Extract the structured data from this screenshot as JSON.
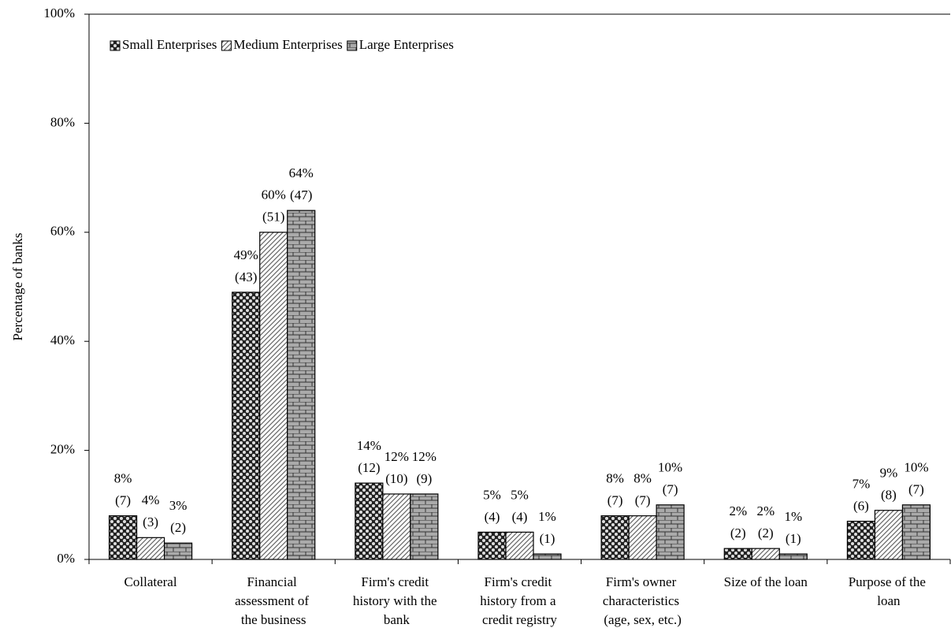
{
  "chart_data": {
    "type": "bar",
    "ylabel": "Percentage of banks",
    "categories": [
      "Collateral",
      "Financial assessment of the business",
      "Firm's credit history with the bank",
      "Firm's credit history from a credit registry",
      "Firm's owner characteristics (age, sex, etc.)",
      "Size of the loan",
      "Purpose of the loan"
    ],
    "series": [
      {
        "name": "Small Enterprises",
        "color": "#333333",
        "values": [
          8,
          49,
          14,
          5,
          8,
          2,
          7
        ],
        "value_labels": [
          "8%",
          "49%",
          "14%",
          "5%",
          "8%",
          "2%",
          "7%"
        ],
        "count_labels": [
          "(7)",
          "(43)",
          "(12)",
          "(4)",
          "(7)",
          "(2)",
          "(6)"
        ]
      },
      {
        "name": "Medium Enterprises",
        "color": "#dddddd",
        "values": [
          4,
          60,
          12,
          5,
          8,
          2,
          9
        ],
        "value_labels": [
          "4%",
          "60%",
          "12%",
          "5%",
          "8%",
          "2%",
          "9%"
        ],
        "count_labels": [
          "(3)",
          "(51)",
          "(10)",
          "(4)",
          "(7)",
          "(2)",
          "(8)"
        ]
      },
      {
        "name": "Large Enterprises",
        "color": "#999999",
        "values": [
          3,
          64,
          12,
          1,
          10,
          1,
          10
        ],
        "value_labels": [
          "3%",
          "64%",
          "12%",
          "1%",
          "10%",
          "1%",
          "10%"
        ],
        "count_labels": [
          "(2)",
          "(47)",
          "(9)",
          "(1)",
          "(7)",
          "(1)",
          "(7)"
        ]
      }
    ],
    "ylim": [
      0,
      100
    ],
    "yticks": [
      {
        "value": 0,
        "label": "0%"
      },
      {
        "value": 20,
        "label": "20%"
      },
      {
        "value": 40,
        "label": "40%"
      },
      {
        "value": 60,
        "label": "60%"
      },
      {
        "value": 80,
        "label": "80%"
      },
      {
        "value": 100,
        "label": "100%"
      }
    ],
    "legend": "top-left"
  }
}
